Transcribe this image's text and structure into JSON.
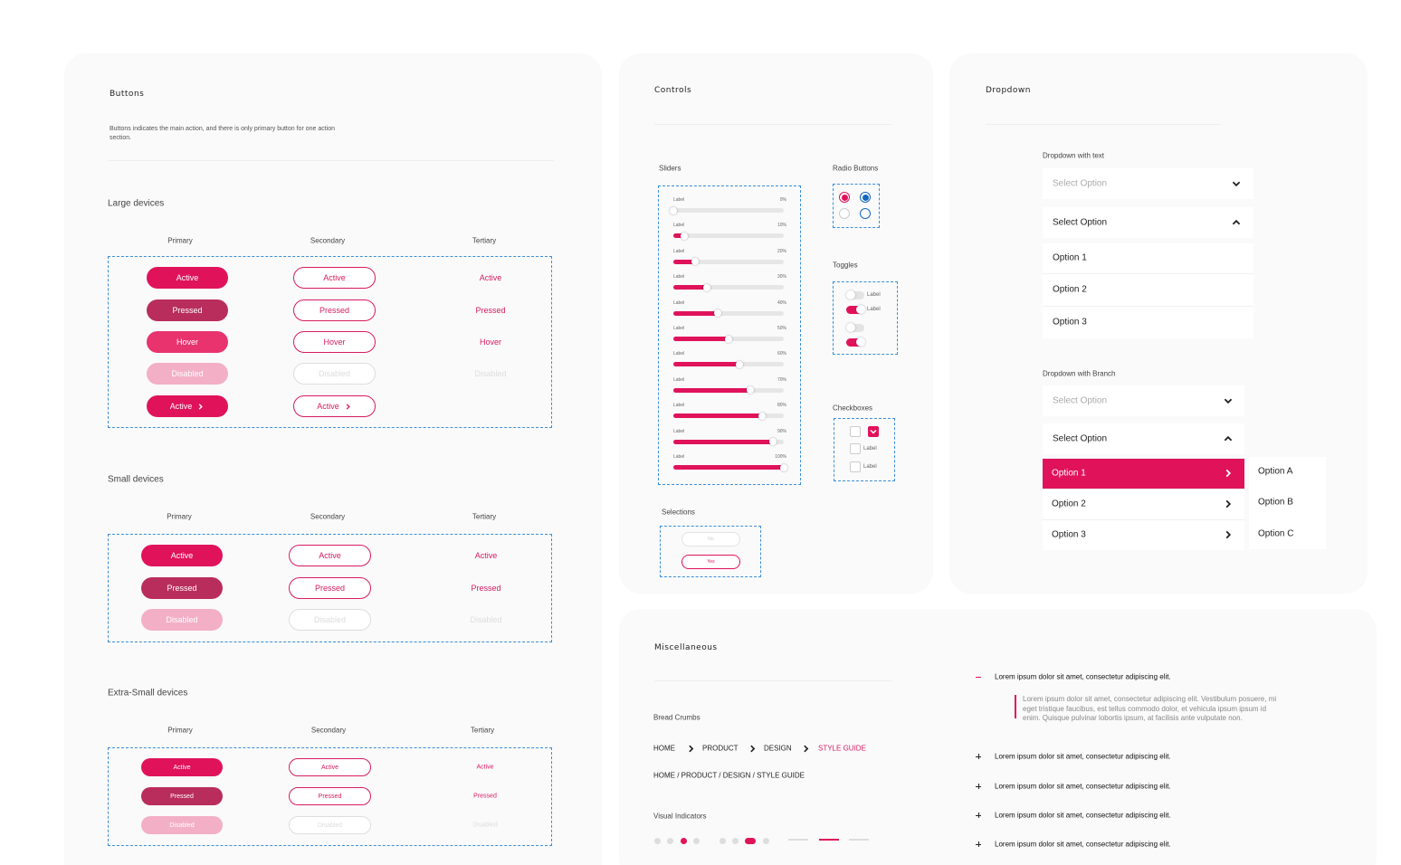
{
  "buttons": {
    "title": "Buttons",
    "description": "Buttons indicates the main action, and there is only primary button for one action section.",
    "sections": [
      {
        "label": "Large devices",
        "columns": [
          "Primary",
          "Secondary",
          "Tertiary"
        ],
        "rows": [
          [
            "Active",
            "Active",
            "Active"
          ],
          [
            "Pressed",
            "Pressed",
            "Pressed"
          ],
          [
            "Hover",
            "Hover",
            "Hover"
          ],
          [
            "Disabled",
            "Disabled",
            "Disabled"
          ],
          [
            "Active",
            "Active"
          ]
        ]
      },
      {
        "label": "Small devices",
        "columns": [
          "Primary",
          "Secondary",
          "Tertiary"
        ],
        "rows": [
          [
            "Active",
            "Active",
            "Active"
          ],
          [
            "Pressed",
            "Pressed",
            "Pressed"
          ],
          [
            "Disabled",
            "Disabled",
            "Disabled"
          ]
        ]
      },
      {
        "label": "Extra-Small devices",
        "columns": [
          "Primary",
          "Secondary",
          "Tertiary"
        ],
        "rows": [
          [
            "Active",
            "Active",
            "Active"
          ],
          [
            "Pressed",
            "Pressed",
            "Pressed"
          ],
          [
            "Disabled",
            "Disabled",
            "Disabled"
          ]
        ]
      }
    ]
  },
  "controls": {
    "title": "Controls",
    "sliders": {
      "label": "Sliders",
      "items": [
        {
          "label": "Label",
          "value": "0%"
        },
        {
          "label": "Label",
          "value": "10%"
        },
        {
          "label": "Label",
          "value": "20%"
        },
        {
          "label": "Label",
          "value": "30%"
        },
        {
          "label": "Label",
          "value": "40%"
        },
        {
          "label": "Label",
          "value": "50%"
        },
        {
          "label": "Label",
          "value": "60%"
        },
        {
          "label": "Label",
          "value": "70%"
        },
        {
          "label": "Label",
          "value": "80%"
        },
        {
          "label": "Label",
          "value": "90%"
        },
        {
          "label": "Label",
          "value": "100%"
        }
      ]
    },
    "radio_buttons": {
      "label": "Radio Buttons"
    },
    "toggles": {
      "label": "Toggles",
      "items": [
        "Label",
        "Label"
      ]
    },
    "checkboxes": {
      "label": "Checkboxes",
      "items": [
        "Label",
        "Label"
      ]
    },
    "selections": {
      "label": "Selections",
      "items": [
        "No",
        "Yes"
      ]
    }
  },
  "dropdown": {
    "title": "Dropdown",
    "with_text": {
      "label": "Dropdown with text",
      "placeholder": "Select Option",
      "open_header": "Select Option",
      "options": [
        "Option 1",
        "Option 2",
        "Option 3"
      ]
    },
    "with_branch": {
      "label": "Dropdown with Branch",
      "placeholder": "Select Option",
      "open_header": "Select Option",
      "options": [
        "Option 1",
        "Option 2",
        "Option 3"
      ],
      "sub_options": [
        "Option A",
        "Option B",
        "Option C"
      ]
    }
  },
  "misc": {
    "title": "Miscellaneous",
    "breadcrumbs": {
      "label": "Bread Crumbs",
      "items": [
        "HOME",
        "PRODUCT",
        "DESIGN",
        "STYLE GUIDE"
      ],
      "text": "HOME / PRODUCT / DESIGN / STYLE GUIDE"
    },
    "indicators": {
      "label": "Visual Indicators"
    },
    "accordion": [
      {
        "title": "Lorem ipsum dolor sit amet, consectetur adipiscing elit.",
        "body": "Lorem ipsum dolor sit amet, consectetur adipiscing elit. Vestibulum posuere, mi eget tristique faucibus, est tellus commodo dolor, et vehicula ipsum ipsum id enim. Quisque pulvinar lobortis ipsum, at facilisis ante vulputate non."
      },
      {
        "title": "Lorem ipsum dolor sit amet, consectetur adipiscing elit."
      },
      {
        "title": "Lorem ipsum dolor sit amet, consectetur adipiscing elit."
      },
      {
        "title": "Lorem ipsum dolor sit amet, consectetur adipiscing elit."
      },
      {
        "title": "Lorem ipsum dolor sit amet, consectetur adipiscing elit."
      }
    ]
  }
}
